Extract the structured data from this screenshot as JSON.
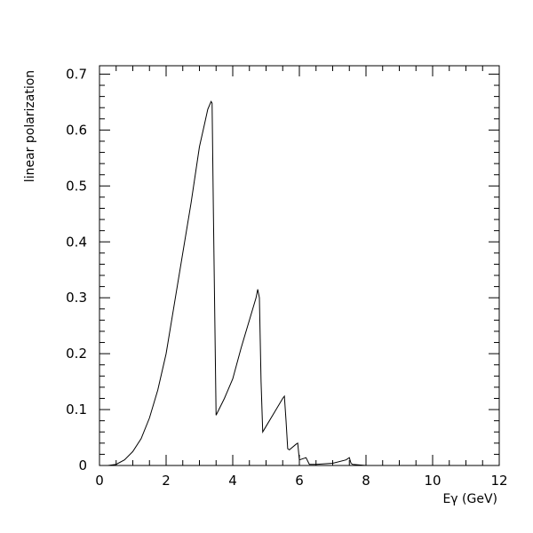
{
  "chart_data": {
    "type": "line",
    "title": "",
    "xlabel": "Eγ (GeV)",
    "ylabel": "linear polarization",
    "xlim": [
      0,
      12
    ],
    "ylim": [
      0,
      0.715
    ],
    "grid": false,
    "x_ticks": [
      0,
      2,
      4,
      6,
      8,
      10,
      12
    ],
    "x_tick_labels": [
      "0",
      "2",
      "4",
      "6",
      "8",
      "10",
      "12"
    ],
    "y_ticks": [
      0,
      0.1,
      0.2,
      0.3,
      0.4,
      0.5,
      0.6,
      0.7
    ],
    "y_tick_labels": [
      "0",
      "0.1",
      "0.2",
      "0.3",
      "0.4",
      "0.5",
      "0.6",
      "0.7"
    ],
    "series": [
      {
        "x": [
          0.25,
          0.5,
          0.75,
          1.0,
          1.25,
          1.5,
          1.75,
          2.0,
          2.25,
          2.5,
          2.75,
          3.0,
          3.15,
          3.25,
          3.35,
          3.38,
          3.42,
          3.5,
          3.75,
          4.0,
          4.25,
          4.5,
          4.7,
          4.75,
          4.8,
          4.85,
          4.9,
          5.0,
          5.25,
          5.5,
          5.55,
          5.6,
          5.65,
          5.7,
          5.9,
          5.95,
          6.0,
          6.1,
          6.2,
          6.3,
          6.5,
          7.0,
          7.4,
          7.5,
          7.55,
          7.6,
          8.0
        ],
        "y": [
          0.0,
          0.002,
          0.01,
          0.025,
          0.048,
          0.085,
          0.135,
          0.2,
          0.29,
          0.38,
          0.47,
          0.57,
          0.61,
          0.637,
          0.651,
          0.648,
          0.45,
          0.09,
          0.12,
          0.155,
          0.21,
          0.26,
          0.3,
          0.315,
          0.3,
          0.15,
          0.06,
          0.07,
          0.095,
          0.12,
          0.124,
          0.08,
          0.03,
          0.028,
          0.038,
          0.04,
          0.01,
          0.012,
          0.014,
          0.002,
          0.002,
          0.004,
          0.01,
          0.014,
          0.004,
          0.002,
          0.0
        ]
      }
    ]
  }
}
